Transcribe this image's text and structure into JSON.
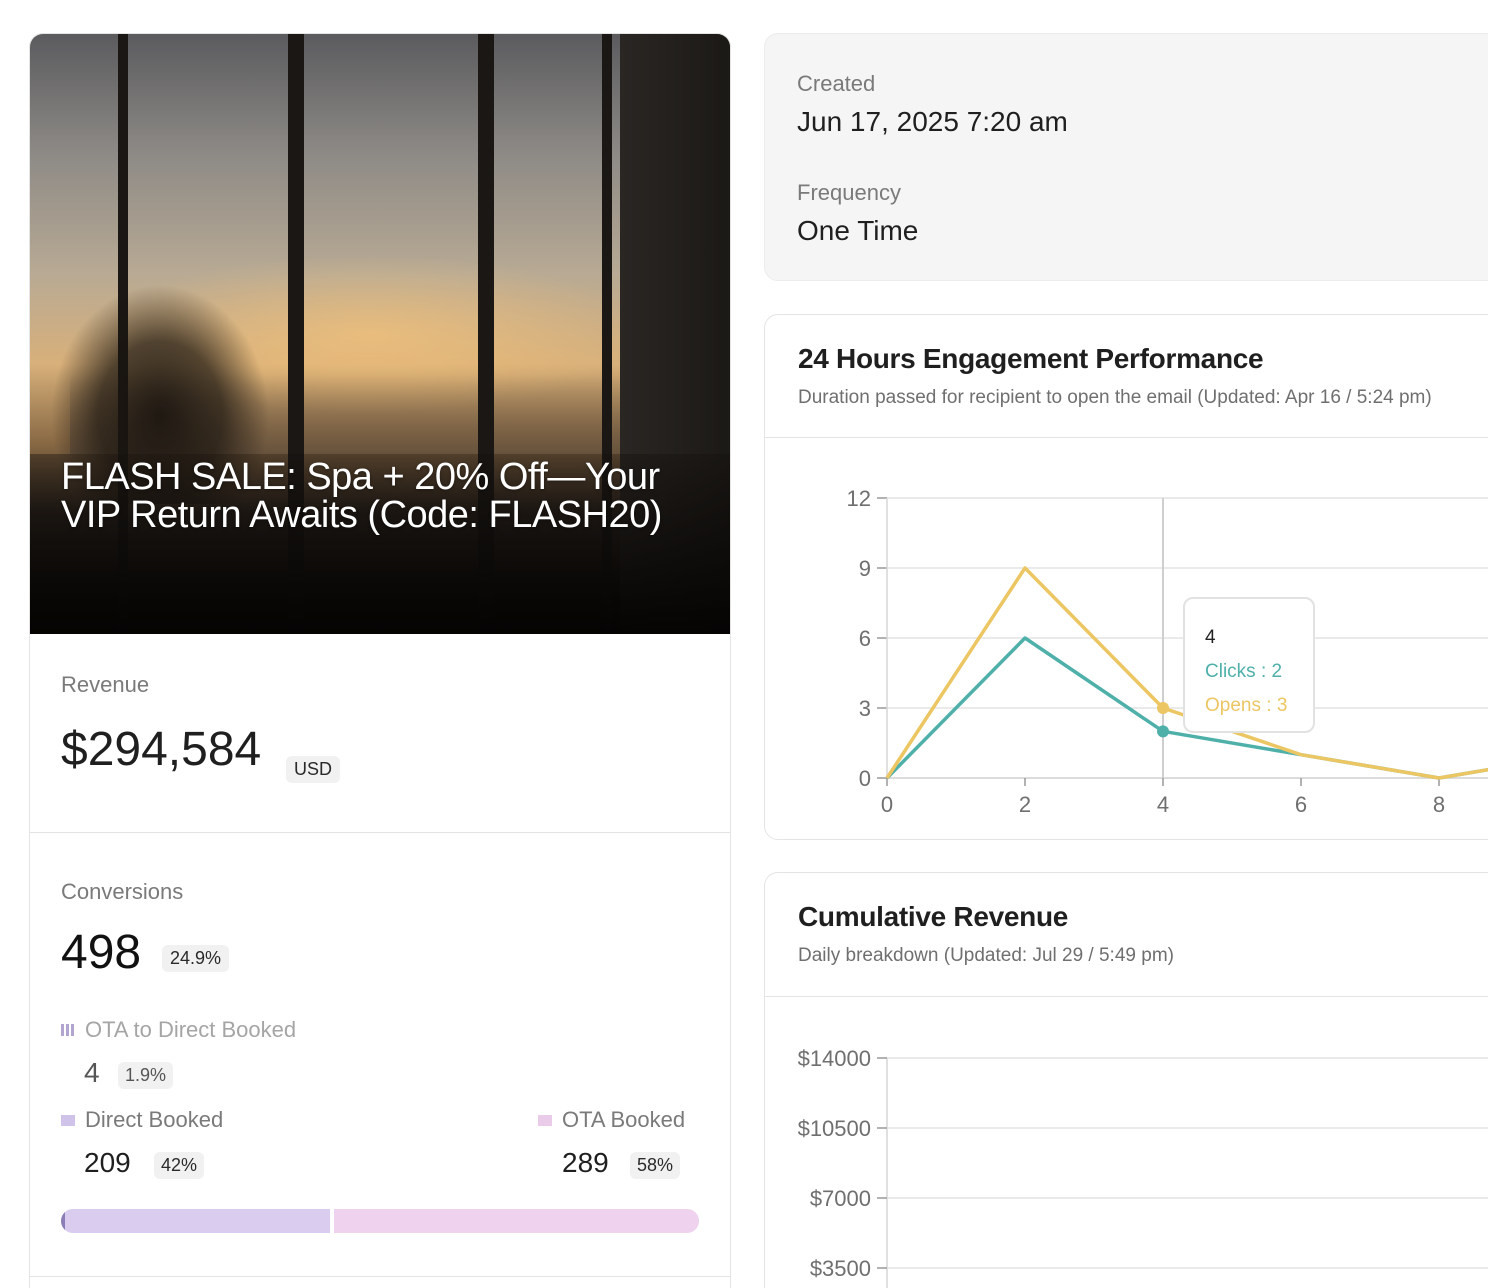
{
  "campaign": {
    "title": "FLASH SALE: Spa + 20% Off—Your VIP Return Awaits (Code: FLASH20)"
  },
  "revenue": {
    "label": "Revenue",
    "value": "$294,584",
    "currency": "USD"
  },
  "conversions": {
    "label": "Conversions",
    "value": "498",
    "percent": "24.9%",
    "ota_to_direct": {
      "label": "OTA to Direct Booked",
      "value": "4",
      "percent": "1.9%"
    },
    "direct": {
      "label": "Direct Booked",
      "value": "209",
      "percent": "42%"
    },
    "ota": {
      "label": "OTA Booked",
      "value": "289",
      "percent": "58%"
    },
    "split": {
      "ota_to_direct_fraction": 0.008,
      "direct_fraction": 0.42,
      "ota_fraction": 0.58
    },
    "colors": {
      "direct": "#d9ccef",
      "ota": "#efd2ee",
      "ota_to_direct": "#8b7db5"
    }
  },
  "info": {
    "created_label": "Created",
    "created_value": "Jun 17, 2025 7:20 am",
    "frequency_label": "Frequency",
    "frequency_value": "One Time"
  },
  "engagement": {
    "title": "24 Hours Engagement Performance",
    "subtitle": "Duration passed for recipient to open the email (Updated: Apr 16 / 5:24 pm)",
    "tooltip": {
      "x": "4",
      "clicks": "Clicks : 2",
      "opens": "Opens : 3"
    }
  },
  "revenue_chart": {
    "title": "Cumulative Revenue",
    "subtitle": "Daily breakdown (Updated: Jul 29 / 5:49 pm)"
  },
  "chart_data": [
    {
      "type": "line",
      "title": "24 Hours Engagement Performance",
      "x": [
        0,
        2,
        4,
        6,
        8,
        9
      ],
      "series": [
        {
          "name": "Clicks",
          "values": [
            0,
            6,
            2,
            1,
            0,
            0.5
          ],
          "color": "#4fb0aa"
        },
        {
          "name": "Opens",
          "values": [
            0,
            9,
            3,
            1,
            0,
            0.5
          ],
          "color": "#ecc662"
        }
      ],
      "x_ticks": [
        "0",
        "2",
        "4",
        "6",
        "8"
      ],
      "y_ticks": [
        "0",
        "3",
        "6",
        "9",
        "12"
      ],
      "xlim": [
        0,
        9
      ],
      "ylim": [
        0,
        12
      ],
      "grid": true,
      "hover_x": 4
    },
    {
      "type": "line",
      "title": "Cumulative Revenue",
      "series": [],
      "y_ticks": [
        "$3500",
        "$7000",
        "$10500",
        "$14000"
      ],
      "ylim": [
        0,
        14000
      ],
      "grid": true
    }
  ]
}
